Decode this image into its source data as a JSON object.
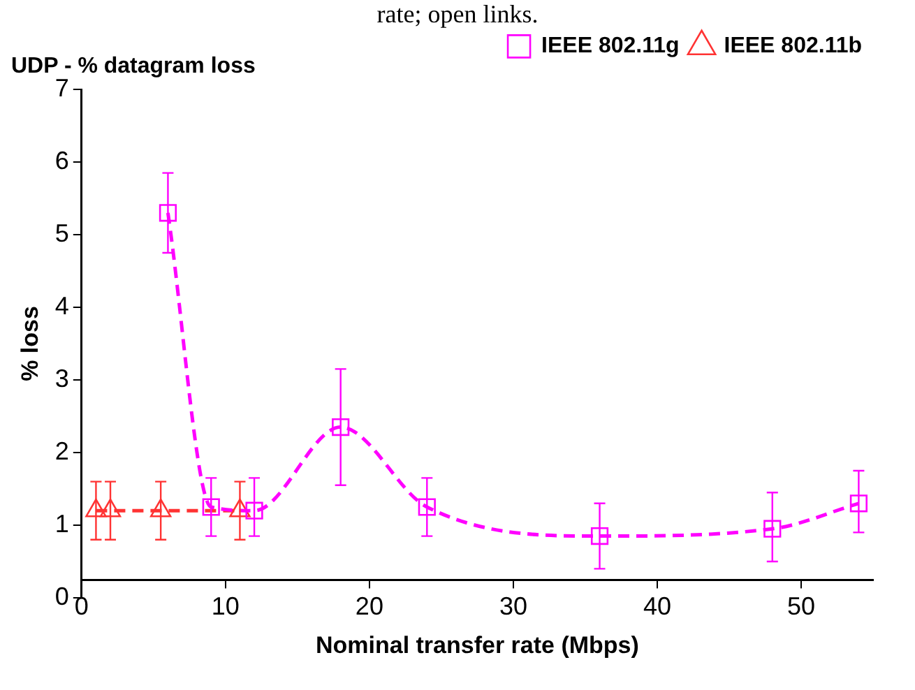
{
  "chart_data": {
    "type": "line",
    "title": "UDP - % datagram loss",
    "xlabel": "Nominal transfer rate (Mbps)",
    "ylabel": "% loss",
    "annotations": [
      "rate; open links."
    ],
    "series": [
      {
        "name": "IEEE 802.11g",
        "color": "#ff00ff",
        "marker": "square",
        "line_style": "dashed",
        "x": [
          6,
          9,
          12,
          18,
          24,
          36,
          48,
          54
        ],
        "values": [
          5.3,
          1.25,
          1.2,
          2.35,
          1.25,
          0.85,
          0.95,
          1.3
        ],
        "errors": [
          [
            4.75,
            5.85
          ],
          [
            0.85,
            1.65
          ],
          [
            0.85,
            1.65
          ],
          [
            1.55,
            3.15
          ],
          [
            0.85,
            1.65
          ],
          [
            0.4,
            1.3
          ],
          [
            0.5,
            1.45
          ],
          [
            0.9,
            1.75
          ]
        ]
      },
      {
        "name": "IEEE 802.11b",
        "color": "#ff3333",
        "marker": "triangle",
        "line_style": "dashed",
        "x": [
          1,
          2,
          5.5,
          11
        ],
        "values": [
          1.2,
          1.2,
          1.2,
          1.2
        ],
        "errors": [
          [
            0.8,
            1.6
          ],
          [
            0.8,
            1.6
          ],
          [
            0.8,
            1.6
          ],
          [
            0.8,
            1.6
          ]
        ]
      }
    ],
    "xlim": [
      0,
      55
    ],
    "xticks": [
      0,
      10,
      20,
      30,
      40,
      50
    ],
    "ylim": [
      0,
      7
    ],
    "yticks": [
      0,
      1,
      2,
      3,
      4,
      5,
      6,
      7
    ],
    "grid": false,
    "legend": "top right"
  }
}
